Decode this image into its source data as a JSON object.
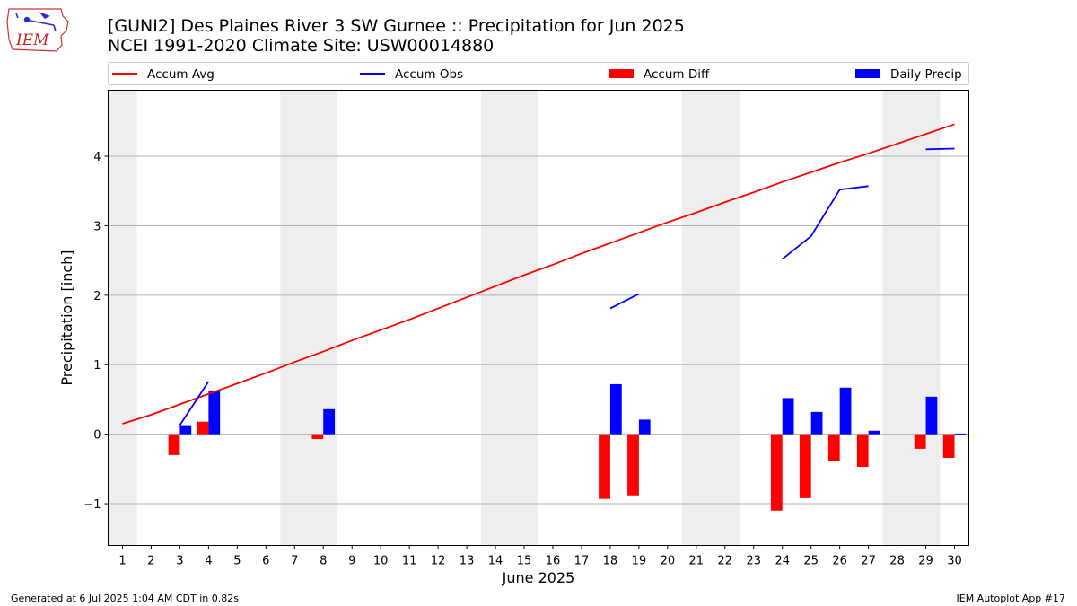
{
  "header": {
    "title_line1": "[GUNI2] Des Plaines River 3 SW Gurnee :: Precipitation for Jun 2025",
    "title_line2": "NCEI 1991-2020 Climate Site: USW00014880"
  },
  "logo": {
    "text": "IEM",
    "icon": "iowa-state-outline-weather-station-icon"
  },
  "footer": {
    "left": "Generated at 6 Jul 2025 1:04 AM CDT in 0.82s",
    "right": "IEM Autoplot App #17"
  },
  "colors": {
    "accum_avg": "#ff0000",
    "accum_obs": "#0000ff",
    "accum_diff": "#ff0000",
    "daily_precip": "#0000ff",
    "weekend_band": "#eeeeee",
    "grid": "#b0b0b0"
  },
  "chart_data": {
    "type": "bar",
    "title": "[GUNI2] Des Plaines River 3 SW Gurnee :: Precipitation for Jun 2025",
    "subtitle": "NCEI 1991-2020 Climate Site: USW00014880",
    "xlabel": "June 2025",
    "ylabel": "Precipitation [inch]",
    "xlim": [
      0.5,
      30.5
    ],
    "ylim": [
      -1.6,
      4.95
    ],
    "yticks": [
      -1,
      0,
      1,
      2,
      3,
      4
    ],
    "ytick_labels": [
      "−1",
      "0",
      "1",
      "2",
      "3",
      "4"
    ],
    "grid": "horizontal",
    "legend_position": "top",
    "days": [
      1,
      2,
      3,
      4,
      5,
      6,
      7,
      8,
      9,
      10,
      11,
      12,
      13,
      14,
      15,
      16,
      17,
      18,
      19,
      20,
      21,
      22,
      23,
      24,
      25,
      26,
      27,
      28,
      29,
      30
    ],
    "weekend_days": [
      1,
      7,
      8,
      14,
      15,
      21,
      22,
      28,
      29
    ],
    "legend": [
      {
        "name": "Accum Avg",
        "kind": "line",
        "color": "#ff0000"
      },
      {
        "name": "Accum Obs",
        "kind": "line",
        "color": "#0000ff"
      },
      {
        "name": "Accum Diff",
        "kind": "bar",
        "color": "#ff0000"
      },
      {
        "name": "Daily Precip",
        "kind": "bar",
        "color": "#0000ff"
      }
    ],
    "series": [
      {
        "name": "Accum Avg",
        "type": "line",
        "values": [
          0.15,
          0.28,
          0.43,
          0.58,
          0.73,
          0.88,
          1.04,
          1.19,
          1.35,
          1.5,
          1.65,
          1.81,
          1.97,
          2.13,
          2.29,
          2.44,
          2.6,
          2.75,
          2.9,
          3.05,
          3.19,
          3.34,
          3.48,
          3.63,
          3.77,
          3.91,
          4.04,
          4.18,
          4.32,
          4.46
        ]
      },
      {
        "name": "Accum Obs",
        "type": "line",
        "segments": [
          {
            "days": [
              3,
              4
            ],
            "values": [
              0.13,
              0.76
            ]
          },
          {
            "days": [
              18,
              19
            ],
            "values": [
              1.81,
              2.02
            ]
          },
          {
            "days": [
              24,
              25,
              26,
              27
            ],
            "values": [
              2.52,
              2.85,
              3.52,
              3.57
            ]
          },
          {
            "days": [
              29,
              30
            ],
            "values": [
              4.1,
              4.11
            ]
          }
        ]
      },
      {
        "name": "Accum Diff",
        "type": "bar",
        "days": [
          3,
          4,
          8,
          18,
          19,
          24,
          25,
          26,
          27,
          29,
          30
        ],
        "values": [
          -0.3,
          0.18,
          -0.07,
          -0.93,
          -0.88,
          -1.1,
          -0.92,
          -0.39,
          -0.47,
          -0.21,
          -0.34
        ]
      },
      {
        "name": "Daily Precip",
        "type": "bar",
        "days": [
          3,
          4,
          8,
          18,
          19,
          24,
          25,
          26,
          27,
          29,
          30
        ],
        "values": [
          0.13,
          0.63,
          0.36,
          0.72,
          0.21,
          0.52,
          0.32,
          0.67,
          0.05,
          0.54,
          0.01
        ]
      }
    ]
  }
}
